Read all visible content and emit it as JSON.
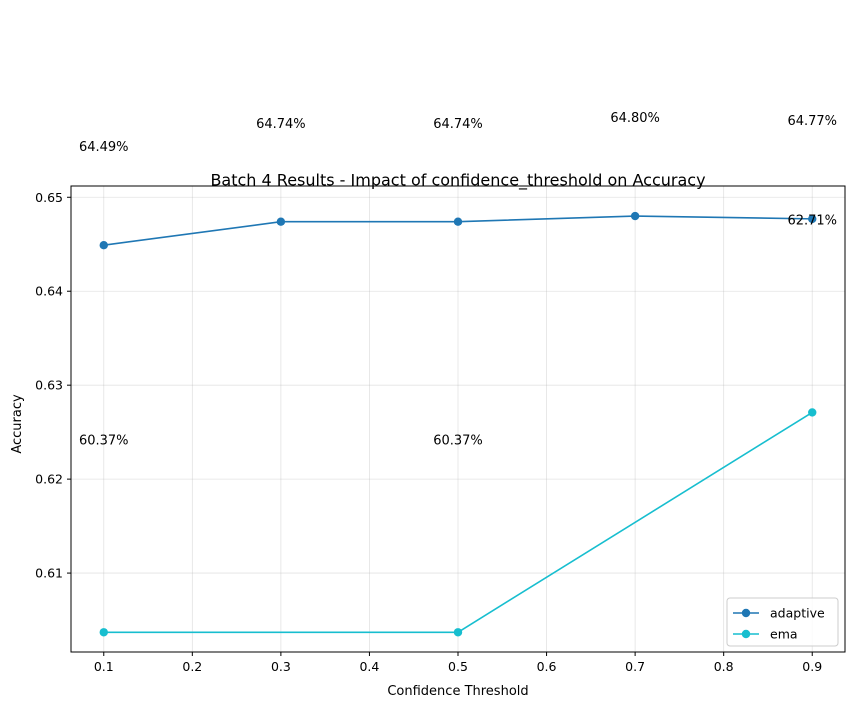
{
  "chart_data": {
    "type": "line",
    "title": "Batch 4 Results - Impact of confidence_threshold on Accuracy",
    "xlabel": "Confidence Threshold",
    "ylabel": "Accuracy",
    "xlim": [
      0.063,
      0.937
    ],
    "ylim": [
      0.6016,
      0.6512
    ],
    "xticks": [
      0.1,
      0.2,
      0.3,
      0.4,
      0.5,
      0.6,
      0.7,
      0.8,
      0.9
    ],
    "xtick_labels": [
      "0.1",
      "0.2",
      "0.3",
      "0.4",
      "0.5",
      "0.6",
      "0.7",
      "0.8",
      "0.9"
    ],
    "yticks": [
      0.61,
      0.62,
      0.63,
      0.64,
      0.65
    ],
    "ytick_labels": [
      "0.61",
      "0.62",
      "0.63",
      "0.64",
      "0.65"
    ],
    "grid": true,
    "legend_position": "lower-right",
    "series": [
      {
        "name": "adaptive",
        "color": "#1f77b4",
        "x": [
          0.1,
          0.3,
          0.5,
          0.7,
          0.9
        ],
        "y": [
          0.6449,
          0.6474,
          0.6474,
          0.648,
          0.6477
        ]
      },
      {
        "name": "ema",
        "color": "#17becf",
        "x": [
          0.1,
          0.5,
          0.9
        ],
        "y": [
          0.6037,
          0.6037,
          0.6271
        ]
      }
    ],
    "annotations": [
      {
        "text": "64.49%",
        "x": 0.1,
        "y": 0.6549
      },
      {
        "text": "64.74%",
        "x": 0.3,
        "y": 0.6574
      },
      {
        "text": "64.74%",
        "x": 0.5,
        "y": 0.6574
      },
      {
        "text": "64.80%",
        "x": 0.7,
        "y": 0.658
      },
      {
        "text": "64.77%",
        "x": 0.9,
        "y": 0.6577
      },
      {
        "text": "60.37%",
        "x": 0.1,
        "y": 0.6237
      },
      {
        "text": "60.37%",
        "x": 0.5,
        "y": 0.6237
      },
      {
        "text": "62.71%",
        "x": 0.9,
        "y": 0.6471
      }
    ]
  }
}
